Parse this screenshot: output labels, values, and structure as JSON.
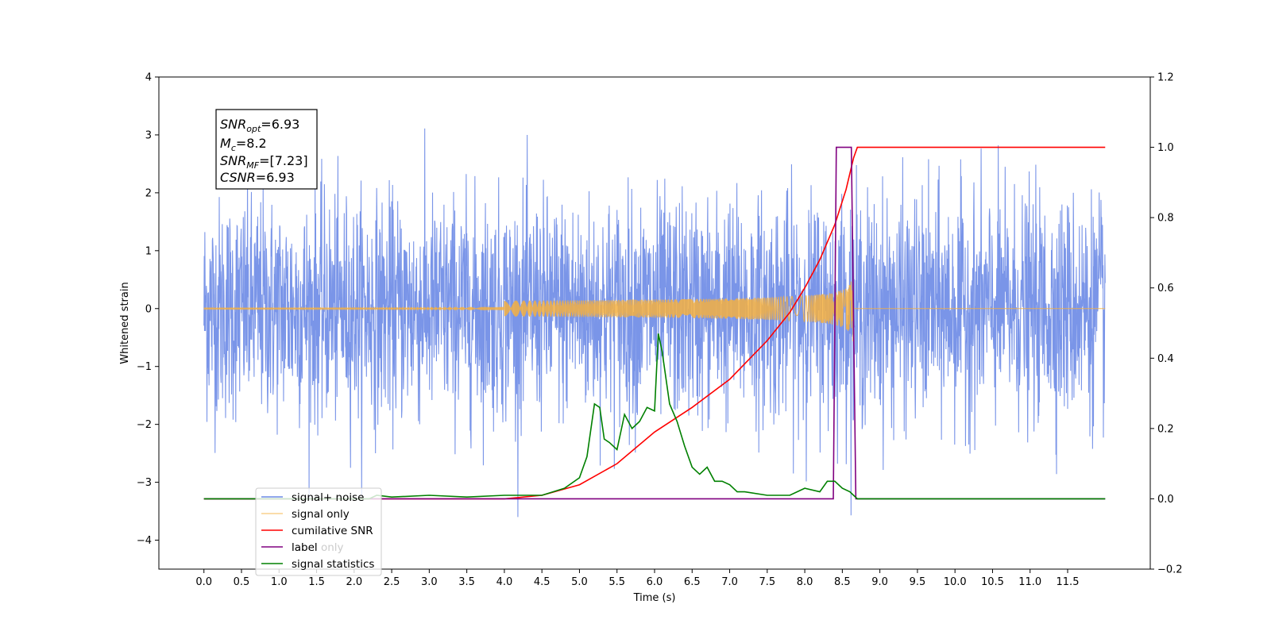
{
  "chart_data": {
    "type": "line",
    "xlabel": "Time (s)",
    "ylabel": "Whitened strain",
    "xlim": [
      -0.6,
      12.6
    ],
    "ylim": [
      -4.5,
      4
    ],
    "y2lim": [
      -0.2,
      1.2
    ],
    "x_ticks": [
      "0.0",
      "0.5",
      "1.0",
      "1.5",
      "2.0",
      "2.5",
      "3.0",
      "3.5",
      "4.0",
      "4.5",
      "5.0",
      "5.5",
      "6.0",
      "6.5",
      "7.0",
      "7.5",
      "8.0",
      "8.5",
      "9.0",
      "9.5",
      "10.0",
      "10.5",
      "11.0",
      "11.5"
    ],
    "y_ticks": [
      "4",
      "3",
      "2",
      "1",
      "0",
      "−1",
      "−2",
      "−3",
      "−4"
    ],
    "y2_ticks": [
      "1.2",
      "1.0",
      "0.8",
      "0.6",
      "0.4",
      "0.2",
      "0.0",
      "−0.2"
    ],
    "grid": false,
    "legend_position": "lower-left",
    "annotation": {
      "lines": [
        {
          "name": "SNR",
          "sub": "opt",
          "value": "=6.93"
        },
        {
          "name": "M",
          "sub": "c",
          "value": "=8.2"
        },
        {
          "name": "SNR",
          "sub": "MF",
          "value": "=[7.23]"
        },
        {
          "name": "CSNR",
          "sub": "",
          "value": "=6.93"
        }
      ]
    },
    "series": [
      {
        "name": "signal+ noise",
        "color": "#6b8ae6",
        "axis": "left",
        "kind": "noise",
        "x_range": [
          0,
          12
        ],
        "amplitude_range": [
          -3.6,
          3.6
        ]
      },
      {
        "name": "signal only",
        "color": "#f5b041",
        "axis": "left",
        "kind": "chirp",
        "x_range": [
          0,
          12
        ],
        "merger_time": 8.65,
        "peak_amplitude": 0.8
      },
      {
        "name": "cumilative SNR",
        "color": "#ff0000",
        "axis": "right",
        "x": [
          0,
          4,
          4.5,
          5,
          5.5,
          6,
          6.5,
          7,
          7.5,
          7.8,
          8,
          8.2,
          8.4,
          8.55,
          8.65,
          8.7,
          12
        ],
        "y": [
          0,
          0,
          0.01,
          0.04,
          0.1,
          0.19,
          0.26,
          0.34,
          0.45,
          0.53,
          0.6,
          0.68,
          0.78,
          0.88,
          0.97,
          1.0,
          1.0
        ]
      },
      {
        "name": "label",
        "color": "#800080",
        "axis": "right",
        "x": [
          0,
          8.38,
          8.42,
          8.62,
          8.68,
          12
        ],
        "y": [
          0,
          0,
          1.0,
          1.0,
          0,
          0
        ]
      },
      {
        "name": "label only",
        "color": "#cccccc",
        "axis": "right",
        "hidden": true,
        "x": [],
        "y": []
      },
      {
        "name": "signal statistics",
        "color": "#008000",
        "axis": "right",
        "x": [
          0,
          2.2,
          2.3,
          2.5,
          3.0,
          3.5,
          4.0,
          4.5,
          4.8,
          5.0,
          5.1,
          5.2,
          5.27,
          5.33,
          5.4,
          5.5,
          5.6,
          5.7,
          5.8,
          5.9,
          6.0,
          6.05,
          6.1,
          6.2,
          6.3,
          6.4,
          6.5,
          6.6,
          6.7,
          6.8,
          6.9,
          7.0,
          7.1,
          7.2,
          7.5,
          7.8,
          8.0,
          8.2,
          8.3,
          8.4,
          8.5,
          8.6,
          8.65,
          8.7,
          12
        ],
        "y": [
          0,
          0,
          0.01,
          0.005,
          0.01,
          0.005,
          0.01,
          0.01,
          0.03,
          0.06,
          0.12,
          0.27,
          0.26,
          0.17,
          0.16,
          0.14,
          0.24,
          0.2,
          0.22,
          0.26,
          0.25,
          0.47,
          0.42,
          0.27,
          0.22,
          0.15,
          0.09,
          0.07,
          0.09,
          0.05,
          0.05,
          0.04,
          0.02,
          0.02,
          0.01,
          0.01,
          0.03,
          0.02,
          0.05,
          0.05,
          0.03,
          0.02,
          0.01,
          0,
          0
        ]
      }
    ]
  }
}
